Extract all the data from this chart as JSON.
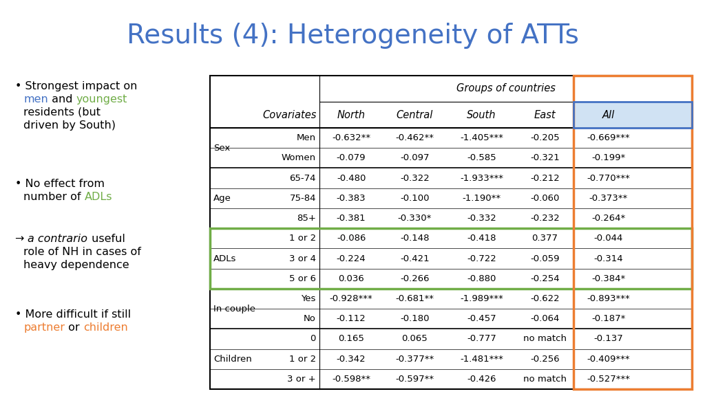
{
  "title": "Results (4): Heterogeneity of ATTs",
  "title_color": "#4472C4",
  "background_color": "#FFFFFF",
  "table": {
    "header_row1_text": "Groups of countries",
    "col_headers": [
      "",
      "Covariates",
      "North",
      "Central",
      "South",
      "East",
      "All"
    ],
    "rows": [
      [
        "Sex",
        "Men",
        "-0.632**",
        "-0.462**",
        "-1.405***",
        "-0.205",
        "-0.669***"
      ],
      [
        "",
        "Women",
        "-0.079",
        "-0.097",
        "-0.585",
        "-0.321",
        "-0.199*"
      ],
      [
        "Age",
        "65-74",
        "-0.480",
        "-0.322",
        "-1.933***",
        "-0.212",
        "-0.770***"
      ],
      [
        "",
        "75-84",
        "-0.383",
        "-0.100",
        "-1.190**",
        "-0.060",
        "-0.373**"
      ],
      [
        "",
        "85+",
        "-0.381",
        "-0.330*",
        "-0.332",
        "-0.232",
        "-0.264*"
      ],
      [
        "ADLs",
        "1 or 2",
        "-0.086",
        "-0.148",
        "-0.418",
        "0.377",
        "-0.044"
      ],
      [
        "",
        "3 or 4",
        "-0.224",
        "-0.421",
        "-0.722",
        "-0.059",
        "-0.314"
      ],
      [
        "",
        "5 or 6",
        "0.036",
        "-0.266",
        "-0.880",
        "-0.254",
        "-0.384*"
      ],
      [
        "In couple",
        "Yes",
        "-0.928***",
        "-0.681**",
        "-1.989***",
        "-0.622",
        "-0.893***"
      ],
      [
        "",
        "No",
        "-0.112",
        "-0.180",
        "-0.457",
        "-0.064",
        "-0.187*"
      ],
      [
        "Children",
        "0",
        "0.165",
        "0.065",
        "-0.777",
        "no match",
        "-0.137"
      ],
      [
        "",
        "1 or 2",
        "-0.342",
        "-0.377**",
        "-1.481***",
        "-0.256",
        "-0.409***"
      ],
      [
        "",
        "3 or +",
        "-0.598**",
        "-0.597**",
        "-0.426",
        "no match",
        "-0.527***"
      ]
    ],
    "group_row_starts": [
      0,
      2,
      5,
      8,
      10
    ],
    "group_row_ends": [
      1,
      4,
      7,
      9,
      12
    ],
    "group_labels": [
      "Sex",
      "Age",
      "ADLs",
      "In couple",
      "Children"
    ]
  },
  "bullets": [
    {
      "lines": [
        [
          {
            "t": "• Strongest impact on",
            "c": "black",
            "i": false
          }
        ],
        [
          {
            "t": "men",
            "c": "#4472C4",
            "i": false
          },
          {
            "t": " and ",
            "c": "black",
            "i": false
          },
          {
            "t": "youngest",
            "c": "#70AD47",
            "i": false
          }
        ],
        [
          {
            "t": "residents (but",
            "c": "black",
            "i": false
          }
        ],
        [
          {
            "t": "driven by South)",
            "c": "black",
            "i": false
          }
        ]
      ]
    },
    {
      "lines": [
        [
          {
            "t": "• No effect from",
            "c": "black",
            "i": false
          }
        ],
        [
          {
            "t": "number of ",
            "c": "black",
            "i": false
          },
          {
            "t": "ADLs",
            "c": "#70AD47",
            "i": false
          }
        ]
      ]
    },
    {
      "lines": [
        [
          {
            "t": "→ ",
            "c": "black",
            "i": false
          },
          {
            "t": "a contrario",
            "c": "black",
            "i": true
          },
          {
            "t": " useful",
            "c": "black",
            "i": false
          }
        ],
        [
          {
            "t": "role of NH in cases of",
            "c": "black",
            "i": false
          }
        ],
        [
          {
            "t": "heavy dependence",
            "c": "black",
            "i": false
          }
        ]
      ]
    },
    {
      "lines": [
        [
          {
            "t": "• More difficult if still",
            "c": "black",
            "i": false
          }
        ],
        [
          {
            "t": "partner",
            "c": "#ED7D31",
            "i": false
          },
          {
            "t": " or ",
            "c": "black",
            "i": false
          },
          {
            "t": "children",
            "c": "#ED7D31",
            "i": false
          }
        ]
      ]
    }
  ]
}
